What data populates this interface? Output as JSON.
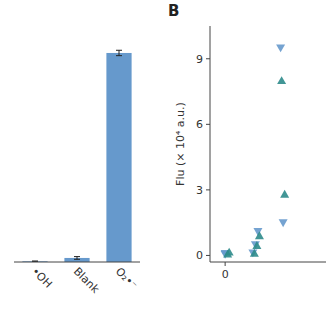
{
  "chart_data": [
    {
      "type": "bar",
      "categories": [
        "•OH",
        "Blank",
        "O₂•⁻"
      ],
      "values": [
        0.03,
        0.18,
        9.3
      ],
      "errors": [
        0.015,
        0.06,
        0.12
      ],
      "color": "#6699CC",
      "ylim": [
        0,
        10.5
      ],
      "tick_labels": "x"
    },
    {
      "type": "scatter",
      "title": "B",
      "ylabel": "Flu (× 10⁴ a.u.)",
      "xlim": [
        -0.3,
        2.0
      ],
      "ylim": [
        -0.3,
        10.5
      ],
      "xticks": [
        0
      ],
      "yticks": [
        0,
        3,
        6,
        9
      ],
      "series": [
        {
          "color": "#6699CC",
          "marker": "triangle-down",
          "x": [
            0.0,
            0.0,
            0.55,
            0.6,
            0.65,
            1.1,
            1.15
          ],
          "values": [
            0.05,
            0.1,
            0.12,
            0.5,
            1.1,
            9.5,
            1.5
          ]
        },
        {
          "color": "#2E8B8B",
          "marker": "triangle-up",
          "x": [
            0.05,
            0.08,
            0.58,
            0.63,
            0.68,
            1.12,
            1.18
          ],
          "values": [
            0.06,
            0.15,
            0.1,
            0.45,
            0.9,
            8.0,
            2.8
          ]
        }
      ]
    }
  ]
}
